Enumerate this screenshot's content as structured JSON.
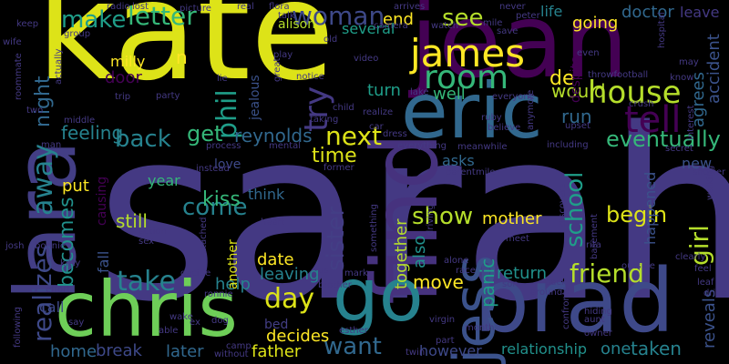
{
  "background": "#000000",
  "words": [
    {
      "text": "sarah",
      "color": "#443983"
    },
    {
      "text": "kate",
      "color": "#dde318"
    },
    {
      "text": "jean",
      "color": "#440154"
    },
    {
      "text": "eric",
      "color": "#31688e"
    },
    {
      "text": "chris",
      "color": "#6ece58"
    },
    {
      "text": "brad",
      "color": "#3e4989"
    },
    {
      "text": "lara",
      "color": "#433e85"
    },
    {
      "text": "find",
      "color": "#46327e"
    },
    {
      "text": "go",
      "color": "#26828e"
    },
    {
      "text": "jess",
      "color": "#3b528b"
    },
    {
      "text": "james",
      "color": "#fde725"
    },
    {
      "text": "room",
      "color": "#35b779"
    },
    {
      "text": "house",
      "color": "#b5de2b"
    },
    {
      "text": "tell",
      "color": "#440154"
    },
    {
      "text": "woman",
      "color": "#3e4989"
    },
    {
      "text": "see",
      "color": "#b5de2b"
    },
    {
      "text": "letter",
      "color": "#35b779"
    },
    {
      "text": "make",
      "color": "#1f9e89"
    },
    {
      "text": "friend",
      "color": "#b5de2b"
    },
    {
      "text": "take",
      "color": "#26828e"
    },
    {
      "text": "day",
      "color": "#dde318"
    },
    {
      "text": "want",
      "color": "#31688e"
    },
    {
      "text": "next",
      "color": "#dde318"
    },
    {
      "text": "back",
      "color": "#26828e"
    },
    {
      "text": "get",
      "color": "#35b779"
    },
    {
      "text": "come",
      "color": "#26828e"
    },
    {
      "text": "away",
      "color": "#26828e"
    },
    {
      "text": "night",
      "color": "#31688e"
    },
    {
      "text": "realizes",
      "color": "#3e4989"
    },
    {
      "text": "becomes",
      "color": "#21918c"
    },
    {
      "text": "show",
      "color": "#b5de2b"
    },
    {
      "text": "school",
      "color": "#1f9e89"
    },
    {
      "text": "girl",
      "color": "#b5de2b"
    },
    {
      "text": "try",
      "color": "#443983"
    },
    {
      "text": "phil",
      "color": "#1f9e89"
    },
    {
      "text": "sister",
      "color": "#433e85"
    },
    {
      "text": "feeling",
      "color": "#26828e"
    },
    {
      "text": "eventually",
      "color": "#35b779"
    },
    {
      "text": "begin",
      "color": "#dde318"
    },
    {
      "text": "reynolds",
      "color": "#31688e"
    },
    {
      "text": "time",
      "color": "#dde318"
    },
    {
      "text": "end",
      "color": "#fde725"
    },
    {
      "text": "milly",
      "color": "#fde725"
    },
    {
      "text": "door",
      "color": "#440154"
    },
    {
      "text": "n",
      "color": "#fde725"
    },
    {
      "text": "de",
      "color": "#fde725"
    },
    {
      "text": "would",
      "color": "#b5de2b"
    },
    {
      "text": "run",
      "color": "#31688e"
    },
    {
      "text": "turn",
      "color": "#1f9e89"
    },
    {
      "text": "well",
      "color": "#35b779"
    },
    {
      "text": "put",
      "color": "#fde725"
    },
    {
      "text": "kiss",
      "color": "#35b779"
    },
    {
      "text": "still",
      "color": "#b5de2b"
    },
    {
      "text": "help",
      "color": "#26828e"
    },
    {
      "text": "date",
      "color": "#fde725"
    },
    {
      "text": "together",
      "color": "#b5de2b"
    },
    {
      "text": "also",
      "color": "#21918c"
    },
    {
      "text": "asks",
      "color": "#31688e"
    },
    {
      "text": "mother",
      "color": "#fde725"
    },
    {
      "text": "return",
      "color": "#21918c"
    },
    {
      "text": "move",
      "color": "#fde725"
    },
    {
      "text": "leaving",
      "color": "#26828e"
    },
    {
      "text": "decides",
      "color": "#fde725"
    },
    {
      "text": "father",
      "color": "#dde318"
    },
    {
      "text": "later",
      "color": "#31688e"
    },
    {
      "text": "break",
      "color": "#3e4989"
    },
    {
      "text": "home",
      "color": "#31688e"
    },
    {
      "text": "one",
      "color": "#26828e"
    },
    {
      "text": "taken",
      "color": "#26828e"
    },
    {
      "text": "happened",
      "color": "#3b528b"
    },
    {
      "text": "reveals",
      "color": "#3b528b"
    },
    {
      "text": "relationship",
      "color": "#21918c"
    },
    {
      "text": "panic",
      "color": "#1f9e89"
    },
    {
      "text": "however",
      "color": "#3e4989"
    },
    {
      "text": "call",
      "color": "#3e4989"
    },
    {
      "text": "life",
      "color": "#26828e"
    },
    {
      "text": "going",
      "color": "#fde725"
    },
    {
      "text": "doctor",
      "color": "#31688e"
    },
    {
      "text": "leave",
      "color": "#443983"
    },
    {
      "text": "accident",
      "color": "#3b528b"
    },
    {
      "text": "agrees",
      "color": "#31688e"
    },
    {
      "text": "new",
      "color": "#3b528b"
    },
    {
      "text": "alison",
      "color": "#b5de2b"
    },
    {
      "text": "several",
      "color": "#1f9e89"
    },
    {
      "text": "love",
      "color": "#3e4989"
    },
    {
      "text": "year",
      "color": "#35b779"
    },
    {
      "text": "think",
      "color": "#31688e"
    },
    {
      "text": "bed",
      "color": "#433e85"
    },
    {
      "text": "another",
      "color": "#dde318"
    },
    {
      "text": "fall",
      "color": "#3b528b"
    },
    {
      "text": "causing",
      "color": "#440154"
    },
    {
      "text": "jealous",
      "color": "#3b528b"
    },
    {
      "text": "despite",
      "color": "#440154"
    },
    {
      "text": "radio",
      "color": "#443983"
    },
    {
      "text": "lost",
      "color": "#443983"
    },
    {
      "text": "picture",
      "color": "#443983"
    },
    {
      "text": "real",
      "color": "#443983"
    },
    {
      "text": "flora",
      "color": "#443983"
    },
    {
      "text": "talk",
      "color": "#443983"
    },
    {
      "text": "arrives",
      "color": "#443983"
    },
    {
      "text": "never",
      "color": "#443983"
    },
    {
      "text": "peter",
      "color": "#443983"
    },
    {
      "text": "keep",
      "color": "#443983"
    },
    {
      "text": "wife",
      "color": "#443983"
    },
    {
      "text": "group",
      "color": "#443983"
    },
    {
      "text": "actually",
      "color": "#443983"
    },
    {
      "text": "roommate",
      "color": "#443983"
    },
    {
      "text": "two",
      "color": "#443983"
    },
    {
      "text": "man",
      "color": "#443983"
    },
    {
      "text": "middle",
      "color": "#443983"
    },
    {
      "text": "trip",
      "color": "#443983"
    },
    {
      "text": "party",
      "color": "#443983"
    },
    {
      "text": "old",
      "color": "#443983"
    },
    {
      "text": "camera",
      "color": "#443983"
    },
    {
      "text": "watch",
      "color": "#443983"
    },
    {
      "text": "mile",
      "color": "#443983"
    },
    {
      "text": "save",
      "color": "#443983"
    },
    {
      "text": "even",
      "color": "#443983"
    },
    {
      "text": "throwfootball",
      "color": "#443983"
    },
    {
      "text": "know",
      "color": "#443983"
    },
    {
      "text": "hospital",
      "color": "#443983"
    },
    {
      "text": "may",
      "color": "#443983"
    },
    {
      "text": "video",
      "color": "#443983"
    },
    {
      "text": "play",
      "color": "#443983"
    },
    {
      "text": "notice",
      "color": "#443983"
    },
    {
      "text": "lie",
      "color": "#443983"
    },
    {
      "text": "great",
      "color": "#443983"
    },
    {
      "text": "child",
      "color": "#443983"
    },
    {
      "text": "realize",
      "color": "#443983"
    },
    {
      "text": "lake",
      "color": "#443983"
    },
    {
      "text": "everyone",
      "color": "#443983"
    },
    {
      "text": "ruby",
      "color": "#443983"
    },
    {
      "text": "believe",
      "color": "#443983"
    },
    {
      "text": "anymore",
      "color": "#443983"
    },
    {
      "text": "crush",
      "color": "#443983"
    },
    {
      "text": "interest",
      "color": "#443983"
    },
    {
      "text": "upset",
      "color": "#443983"
    },
    {
      "text": "taking",
      "color": "#443983"
    },
    {
      "text": "car",
      "color": "#443983"
    },
    {
      "text": "dress",
      "color": "#443983"
    },
    {
      "text": "everything",
      "color": "#443983"
    },
    {
      "text": "meanwhile",
      "color": "#443983"
    },
    {
      "text": "including",
      "color": "#443983"
    },
    {
      "text": "process",
      "color": "#443983"
    },
    {
      "text": "mental",
      "color": "#443983"
    },
    {
      "text": "secret",
      "color": "#443983"
    },
    {
      "text": "shower",
      "color": "#443983"
    },
    {
      "text": "walking",
      "color": "#443983"
    },
    {
      "text": "instead",
      "color": "#443983"
    },
    {
      "text": "former",
      "color": "#443983"
    },
    {
      "text": "parent",
      "color": "#443983"
    },
    {
      "text": "mile",
      "color": "#443983"
    },
    {
      "text": "josh",
      "color": "#443983"
    },
    {
      "text": "bonnie",
      "color": "#443983"
    },
    {
      "text": "kitty",
      "color": "#443983"
    },
    {
      "text": "action",
      "color": "#443983"
    },
    {
      "text": "sex",
      "color": "#443983"
    },
    {
      "text": "heart",
      "color": "#443983"
    },
    {
      "text": "attached",
      "color": "#443983"
    },
    {
      "text": "something",
      "color": "#443983"
    },
    {
      "text": "driving",
      "color": "#443983"
    },
    {
      "text": "discovers",
      "color": "#443983"
    },
    {
      "text": "rita",
      "color": "#443983"
    },
    {
      "text": "basement",
      "color": "#443983"
    },
    {
      "text": "learns",
      "color": "#443983"
    },
    {
      "text": "meet",
      "color": "#443983"
    },
    {
      "text": "alone",
      "color": "#443983"
    },
    {
      "text": "race",
      "color": "#443983"
    },
    {
      "text": "outside",
      "color": "#443983"
    },
    {
      "text": "clearly",
      "color": "#443983"
    },
    {
      "text": "feel",
      "color": "#443983"
    },
    {
      "text": "leaf",
      "color": "#443983"
    },
    {
      "text": "drive",
      "color": "#443983"
    },
    {
      "text": "effort",
      "color": "#443983"
    },
    {
      "text": "decide",
      "color": "#443983"
    },
    {
      "text": "ronnie",
      "color": "#443983"
    },
    {
      "text": "us",
      "color": "#443983"
    },
    {
      "text": "mark",
      "color": "#443983"
    },
    {
      "text": "brother",
      "color": "#443983"
    },
    {
      "text": "son",
      "color": "#443983"
    },
    {
      "text": "pack",
      "color": "#443983"
    },
    {
      "text": "around",
      "color": "#443983"
    },
    {
      "text": "confronts",
      "color": "#443983"
    },
    {
      "text": "hiding",
      "color": "#443983"
    },
    {
      "text": "aunt",
      "color": "#443983"
    },
    {
      "text": "owner",
      "color": "#443983"
    },
    {
      "text": "say",
      "color": "#443983"
    },
    {
      "text": "following",
      "color": "#443983"
    },
    {
      "text": "able",
      "color": "#443983"
    },
    {
      "text": "wake",
      "color": "#443983"
    },
    {
      "text": "ex",
      "color": "#443983"
    },
    {
      "text": "dog",
      "color": "#443983"
    },
    {
      "text": "camp",
      "color": "#443983"
    },
    {
      "text": "without",
      "color": "#443983"
    },
    {
      "text": "esther",
      "color": "#443983"
    },
    {
      "text": "virgin",
      "color": "#443983"
    },
    {
      "text": "twin",
      "color": "#443983"
    },
    {
      "text": "part",
      "color": "#443983"
    },
    {
      "text": "month",
      "color": "#443983"
    }
  ]
}
